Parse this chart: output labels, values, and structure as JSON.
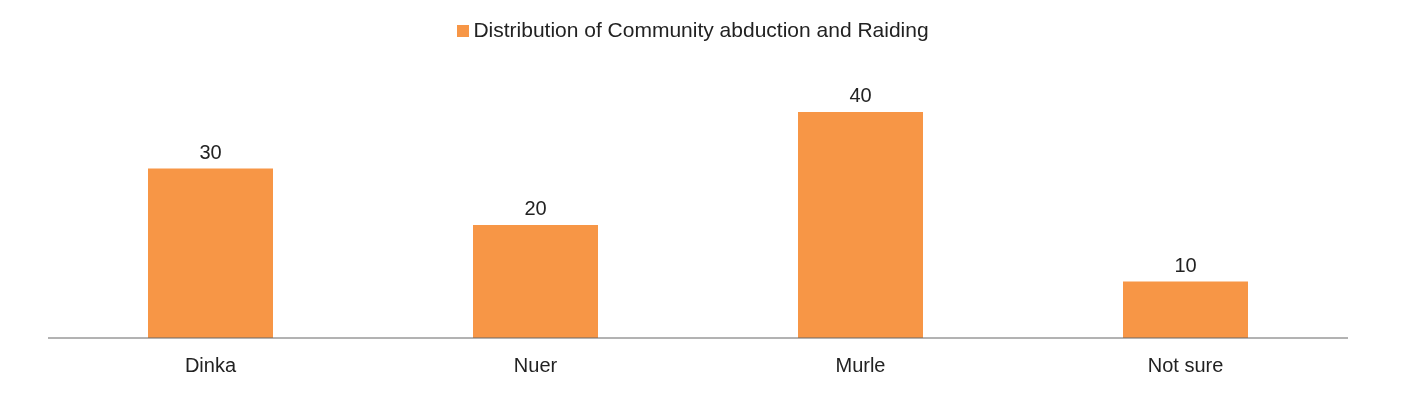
{
  "chart_data": {
    "type": "bar",
    "categories": [
      "Dinka",
      "Nuer",
      "Murle",
      "Not sure"
    ],
    "series": [
      {
        "name": "Distribution of Community abduction and Raiding",
        "color": "#f79646",
        "values": [
          30,
          20,
          40,
          10
        ]
      }
    ],
    "data_labels": true,
    "legend": "top"
  }
}
